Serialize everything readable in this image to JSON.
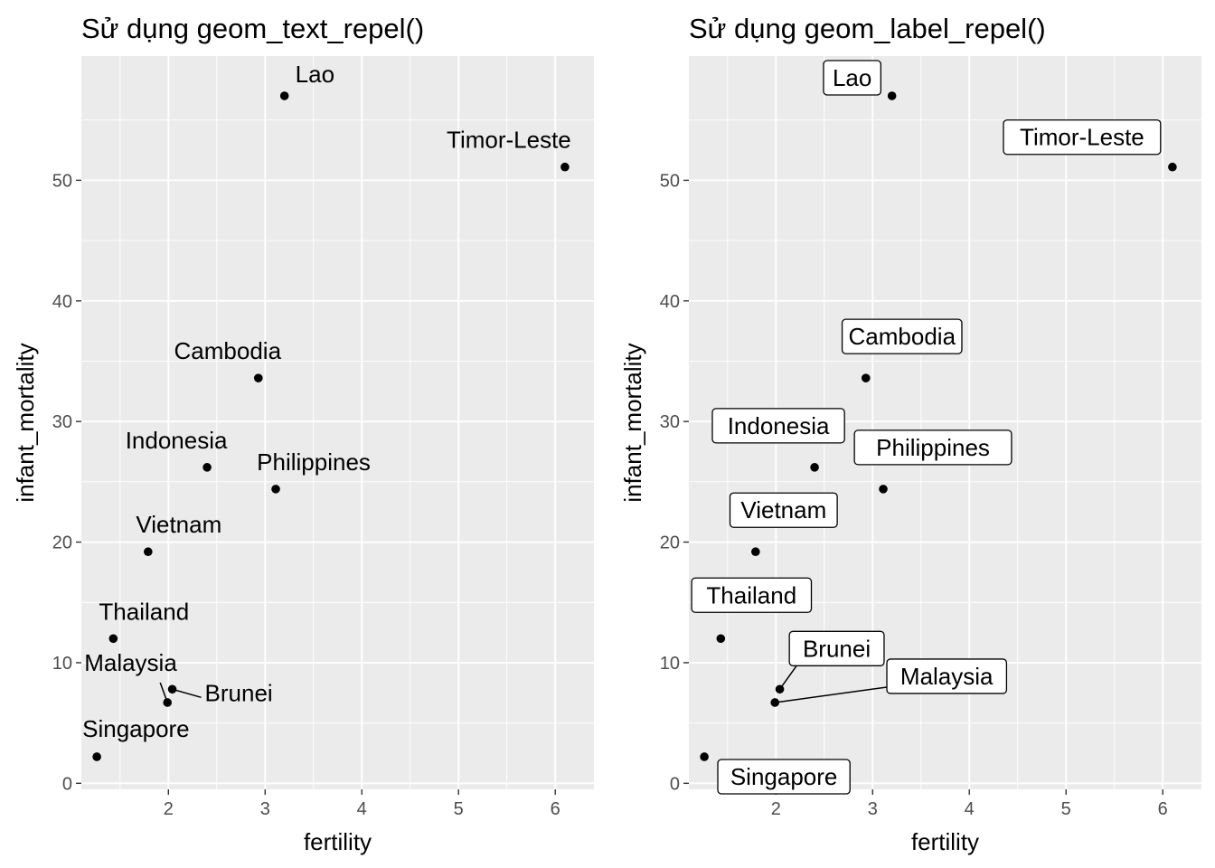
{
  "chart_data": [
    {
      "type": "scatter",
      "title": "Sử dụng geom_text_repel()",
      "xlabel": "fertility",
      "ylabel": "infant_mortality",
      "xlim": [
        1.1,
        6.4
      ],
      "ylim": [
        -0.5,
        60.3
      ],
      "x_ticks": [
        2,
        3,
        4,
        5,
        6
      ],
      "y_ticks": [
        0,
        10,
        20,
        30,
        40,
        50
      ],
      "label_style": "text",
      "grid": true,
      "points": [
        {
          "label": "Lao",
          "x": 3.2,
          "y": 57.0
        },
        {
          "label": "Timor-Leste",
          "x": 6.1,
          "y": 51.1
        },
        {
          "label": "Cambodia",
          "x": 2.93,
          "y": 33.6
        },
        {
          "label": "Indonesia",
          "x": 2.4,
          "y": 26.2
        },
        {
          "label": "Philippines",
          "x": 3.11,
          "y": 24.4
        },
        {
          "label": "Vietnam",
          "x": 1.79,
          "y": 19.2
        },
        {
          "label": "Thailand",
          "x": 1.43,
          "y": 12.0
        },
        {
          "label": "Brunei",
          "x": 2.04,
          "y": 7.8
        },
        {
          "label": "Malaysia",
          "x": 1.99,
          "y": 6.7
        },
        {
          "label": "Singapore",
          "x": 1.26,
          "y": 2.2
        }
      ]
    },
    {
      "type": "scatter",
      "title": "Sử dụng geom_label_repel()",
      "xlabel": "fertility",
      "ylabel": "infant_mortality",
      "xlim": [
        1.1,
        6.4
      ],
      "ylim": [
        -0.5,
        60.3
      ],
      "x_ticks": [
        2,
        3,
        4,
        5,
        6
      ],
      "y_ticks": [
        0,
        10,
        20,
        30,
        40,
        50
      ],
      "label_style": "label",
      "grid": true,
      "points": [
        {
          "label": "Lao",
          "x": 3.2,
          "y": 57.0
        },
        {
          "label": "Timor-Leste",
          "x": 6.1,
          "y": 51.1
        },
        {
          "label": "Cambodia",
          "x": 2.93,
          "y": 33.6
        },
        {
          "label": "Indonesia",
          "x": 2.4,
          "y": 26.2
        },
        {
          "label": "Philippines",
          "x": 3.11,
          "y": 24.4
        },
        {
          "label": "Vietnam",
          "x": 1.79,
          "y": 19.2
        },
        {
          "label": "Thailand",
          "x": 1.43,
          "y": 12.0
        },
        {
          "label": "Brunei",
          "x": 2.04,
          "y": 7.8
        },
        {
          "label": "Malaysia",
          "x": 1.99,
          "y": 6.7
        },
        {
          "label": "Singapore",
          "x": 1.26,
          "y": 2.2
        }
      ]
    }
  ],
  "colors": {
    "panel_background": "#ebebeb",
    "grid_line": "#ffffff",
    "point": "#000000",
    "tick_text": "#4d4d4d",
    "label_fill": "#ffffff"
  }
}
